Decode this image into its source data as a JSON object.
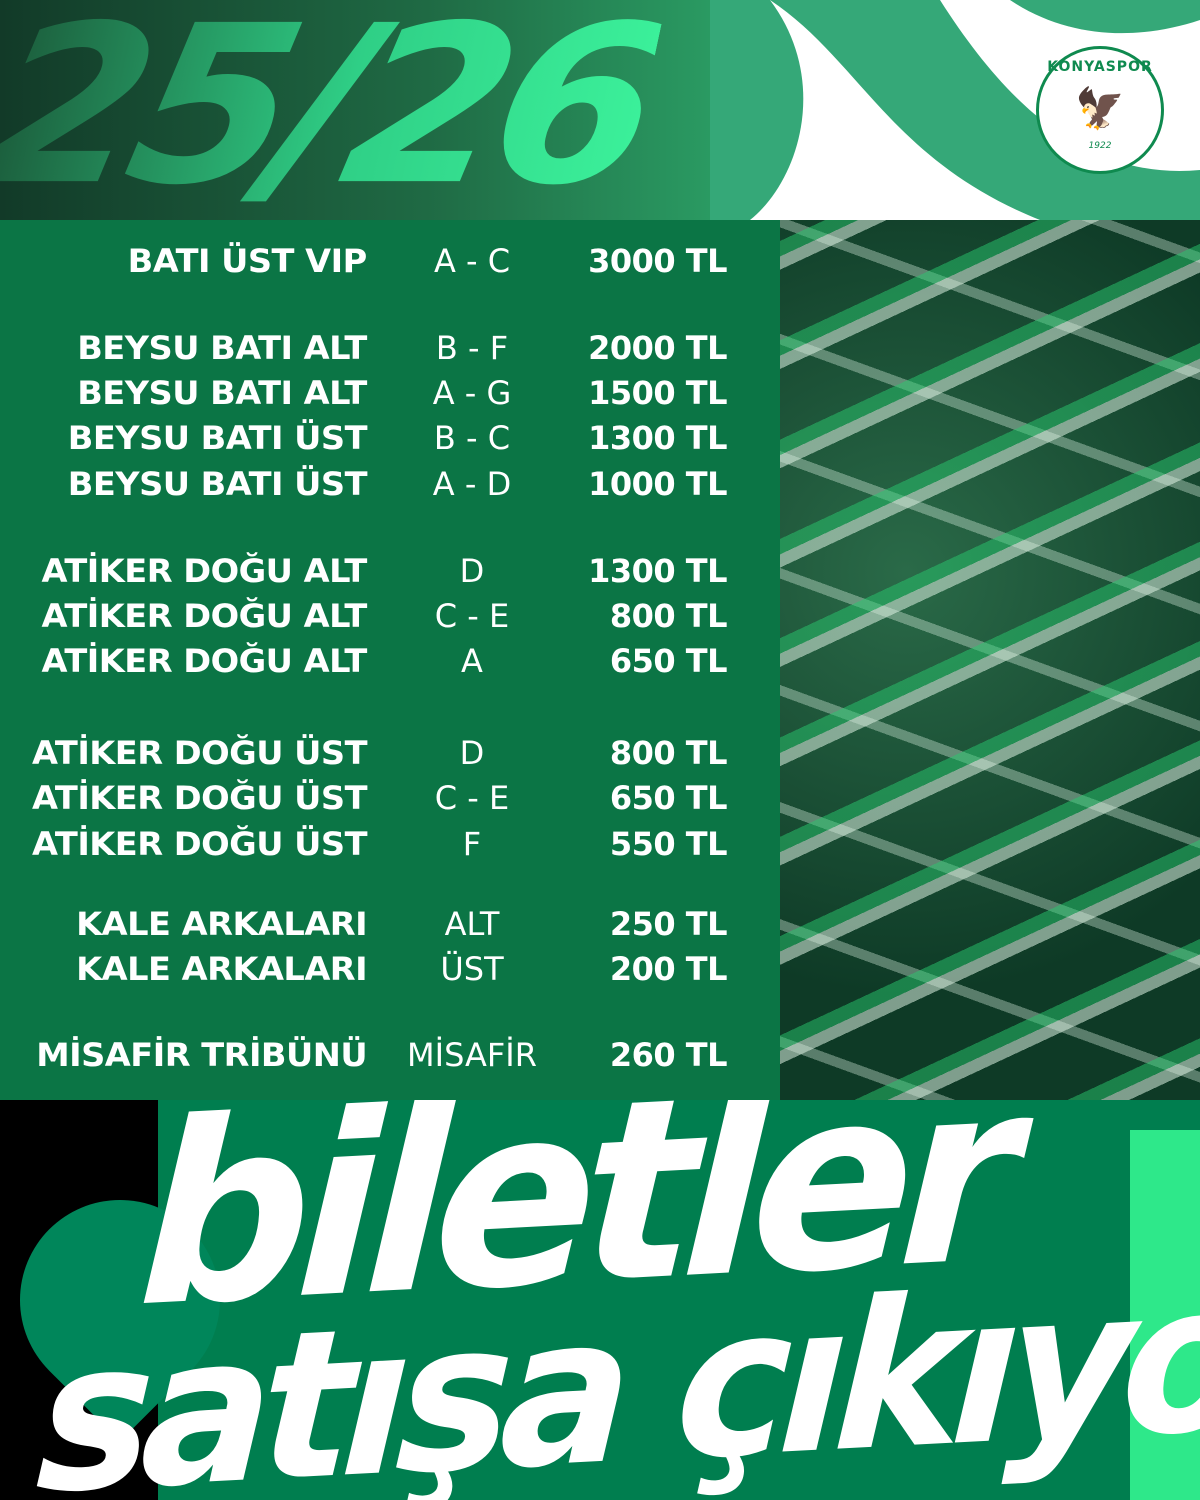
{
  "header": {
    "season": "25/26"
  },
  "logo": {
    "name": "KONYASPOR",
    "year": "1922"
  },
  "prices": [
    {
      "name": "BATI ÜST VIP",
      "block": "A - C",
      "price": "3000 TL"
    },
    {
      "name": "BEYSU BATI ALT",
      "block": "B - F",
      "price": "2000 TL"
    },
    {
      "name": "BEYSU BATI ALT",
      "block": "A - G",
      "price": "1500 TL"
    },
    {
      "name": "BEYSU BATI ÜST",
      "block": "B - C",
      "price": "1300 TL"
    },
    {
      "name": "BEYSU BATI ÜST",
      "block": "A - D",
      "price": "1000 TL"
    },
    {
      "name": "ATİKER DOĞU ALT",
      "block": "D",
      "price": "1300 TL"
    },
    {
      "name": "ATİKER DOĞU ALT",
      "block": "C - E",
      "price": "800 TL"
    },
    {
      "name": "ATİKER DOĞU ALT",
      "block": "A",
      "price": "650 TL"
    },
    {
      "name": "ATİKER DOĞU ÜST",
      "block": "D",
      "price": "800 TL"
    },
    {
      "name": "ATİKER DOĞU ÜST",
      "block": "C - E",
      "price": "650 TL"
    },
    {
      "name": "ATİKER DOĞU ÜST",
      "block": "F",
      "price": "550 TL"
    },
    {
      "name": "KALE ARKALARI",
      "block": "ALT",
      "price": "250 TL"
    },
    {
      "name": "KALE ARKALARI",
      "block": "ÜST",
      "price": "200 TL"
    },
    {
      "name": "MİSAFİR TRİBÜNÜ",
      "block": "MİSAFİR",
      "price": "260 TL"
    }
  ],
  "headline": {
    "line1": "biletler",
    "line2": "satışa çıkıyor"
  },
  "colors": {
    "primary_green": "#0b7545",
    "accent_green": "#2ee88a",
    "white": "#ffffff",
    "black": "#000000"
  }
}
